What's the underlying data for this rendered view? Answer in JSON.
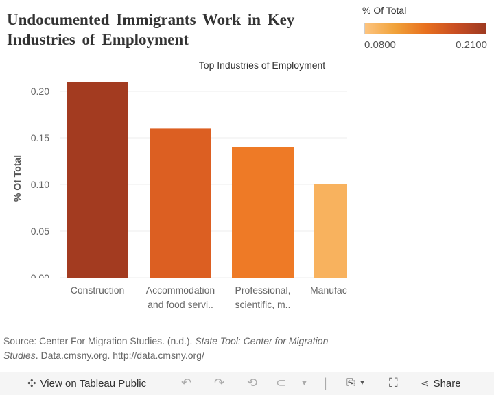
{
  "title": "Undocumented Immigrants Work in Key Industries of Employment",
  "legend": {
    "title": "% Of Total",
    "min": "0.0800",
    "max": "0.2100",
    "colors": [
      "#fdc47f",
      "#f0a23a",
      "#e8711f",
      "#c94e22",
      "#9e3a21"
    ]
  },
  "chart_data": {
    "type": "bar",
    "title": "Top Industries of Employment",
    "xlabel": "",
    "ylabel": "% Of Total",
    "ylim": [
      0,
      0.2
    ],
    "yticks": [
      "0.00",
      "0.05",
      "0.10",
      "0.15",
      "0.20"
    ],
    "grid": true,
    "categories": [
      [
        "Construction"
      ],
      [
        "Accommodation",
        "and food servi.."
      ],
      [
        "Professional,",
        "scientific, m.."
      ],
      [
        "Manufac"
      ]
    ],
    "values": [
      0.21,
      0.16,
      0.14,
      0.1
    ],
    "colors": [
      "#a33b20",
      "#dc5f22",
      "#ee7a26",
      "#f8b25e"
    ]
  },
  "source": {
    "prefix": "Source: Center For Migration Studies. (n.d.). ",
    "italic": "State Tool: Center for Migration Studies",
    "suffix": ". Data.cmsny.org. http://data.cmsny.org/"
  },
  "toolbar": {
    "view_label": "View on Tableau Public",
    "share_label": "Share"
  }
}
